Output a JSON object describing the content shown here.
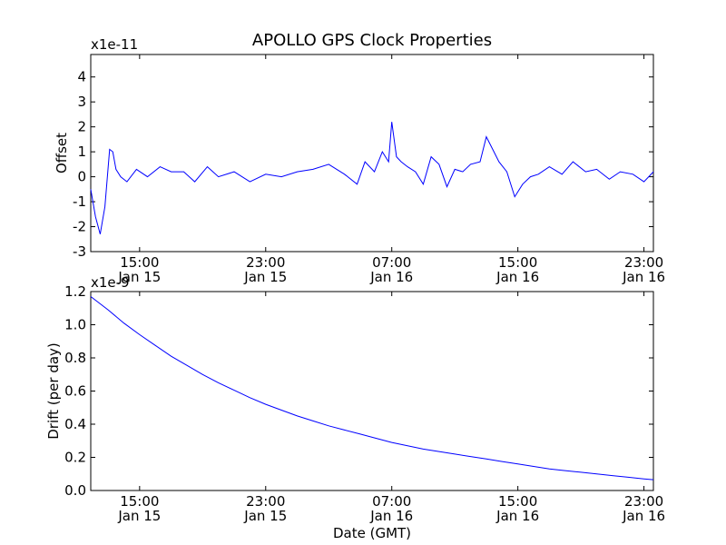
{
  "figure": {
    "title": "APOLLO GPS Clock Properties",
    "xlabel": "Date (GMT)",
    "colors": {
      "line": "#0000ff",
      "axes": "#000000",
      "background": "#ffffff"
    }
  },
  "chart_data": [
    {
      "id": "offset",
      "type": "line",
      "title": "APOLLO GPS Clock Properties",
      "ylabel": "Offset",
      "xlabel": "",
      "scale_label": "x1e-11",
      "xlim_hours": [
        11.9,
        47.6
      ],
      "ylim": [
        -3,
        4.9
      ],
      "xticks": [
        {
          "hour": 15,
          "label1": "15:00",
          "label2": "Jan 15"
        },
        {
          "hour": 23,
          "label1": "23:00",
          "label2": "Jan 15"
        },
        {
          "hour": 31,
          "label1": "07:00",
          "label2": "Jan 16"
        },
        {
          "hour": 39,
          "label1": "15:00",
          "label2": "Jan 16"
        },
        {
          "hour": 47,
          "label1": "23:00",
          "label2": "Jan 16"
        }
      ],
      "yticks": [
        -3,
        -2,
        -1,
        0,
        1,
        2,
        3,
        4
      ],
      "series": [
        {
          "name": "Offset",
          "color": "#0000ff",
          "hours": [
            11.9,
            12.2,
            12.5,
            12.8,
            13.1,
            13.3,
            13.5,
            13.8,
            14.2,
            14.8,
            15.5,
            16.3,
            17.0,
            17.8,
            18.5,
            19.3,
            20.0,
            21.0,
            22.0,
            23.0,
            24.0,
            25.0,
            26.0,
            27.0,
            28.0,
            28.8,
            29.3,
            29.9,
            30.4,
            30.8,
            31.0,
            31.3,
            31.6,
            32.0,
            32.5,
            33.0,
            33.5,
            34.0,
            34.5,
            35.0,
            35.5,
            36.0,
            36.6,
            37.0,
            37.4,
            37.8,
            38.3,
            38.8,
            39.3,
            39.8,
            40.3,
            41.0,
            41.8,
            42.5,
            43.3,
            44.0,
            44.8,
            45.5,
            46.3,
            47.0,
            47.6
          ],
          "values": [
            -0.5,
            -1.6,
            -2.3,
            -1.2,
            1.1,
            1.0,
            0.3,
            0.0,
            -0.2,
            0.3,
            0.0,
            0.4,
            0.2,
            0.2,
            -0.2,
            0.4,
            0.0,
            0.2,
            -0.2,
            0.1,
            0.0,
            0.2,
            0.3,
            0.5,
            0.1,
            -0.3,
            0.6,
            0.2,
            1.0,
            0.6,
            2.2,
            0.8,
            0.6,
            0.4,
            0.2,
            -0.3,
            0.8,
            0.5,
            -0.4,
            0.3,
            0.2,
            0.5,
            0.6,
            1.6,
            1.1,
            0.6,
            0.2,
            -0.8,
            -0.3,
            0.0,
            0.1,
            0.4,
            0.1,
            0.6,
            0.2,
            0.3,
            -0.1,
            0.2,
            0.1,
            -0.2,
            0.2
          ]
        }
      ]
    },
    {
      "id": "drift",
      "type": "line",
      "title": "",
      "ylabel": "Drift (per day)",
      "xlabel": "Date (GMT)",
      "scale_label": "x1e-9",
      "xlim_hours": [
        11.9,
        47.6
      ],
      "ylim": [
        0.0,
        1.2
      ],
      "xticks": [
        {
          "hour": 15,
          "label1": "15:00",
          "label2": "Jan 15"
        },
        {
          "hour": 23,
          "label1": "23:00",
          "label2": "Jan 15"
        },
        {
          "hour": 31,
          "label1": "07:00",
          "label2": "Jan 16"
        },
        {
          "hour": 39,
          "label1": "15:00",
          "label2": "Jan 16"
        },
        {
          "hour": 47,
          "label1": "23:00",
          "label2": "Jan 16"
        }
      ],
      "yticks": [
        0.0,
        0.2,
        0.4,
        0.6,
        0.8,
        1.0,
        1.2
      ],
      "series": [
        {
          "name": "Drift",
          "color": "#0000ff",
          "hours": [
            11.9,
            13.0,
            14.0,
            15.0,
            16.0,
            17.0,
            18.0,
            19.0,
            20.0,
            21.0,
            22.0,
            23.0,
            24.0,
            25.0,
            26.0,
            27.0,
            28.0,
            29.0,
            30.0,
            31.0,
            32.0,
            33.0,
            34.0,
            35.0,
            36.0,
            37.0,
            38.0,
            39.0,
            40.0,
            41.0,
            42.0,
            43.0,
            44.0,
            45.0,
            46.0,
            47.0,
            47.6
          ],
          "values": [
            1.17,
            1.09,
            1.01,
            0.94,
            0.875,
            0.81,
            0.755,
            0.7,
            0.65,
            0.605,
            0.56,
            0.52,
            0.485,
            0.45,
            0.42,
            0.39,
            0.365,
            0.34,
            0.315,
            0.29,
            0.27,
            0.25,
            0.235,
            0.22,
            0.205,
            0.19,
            0.175,
            0.16,
            0.145,
            0.13,
            0.12,
            0.11,
            0.1,
            0.09,
            0.08,
            0.07,
            0.065
          ]
        }
      ]
    }
  ]
}
